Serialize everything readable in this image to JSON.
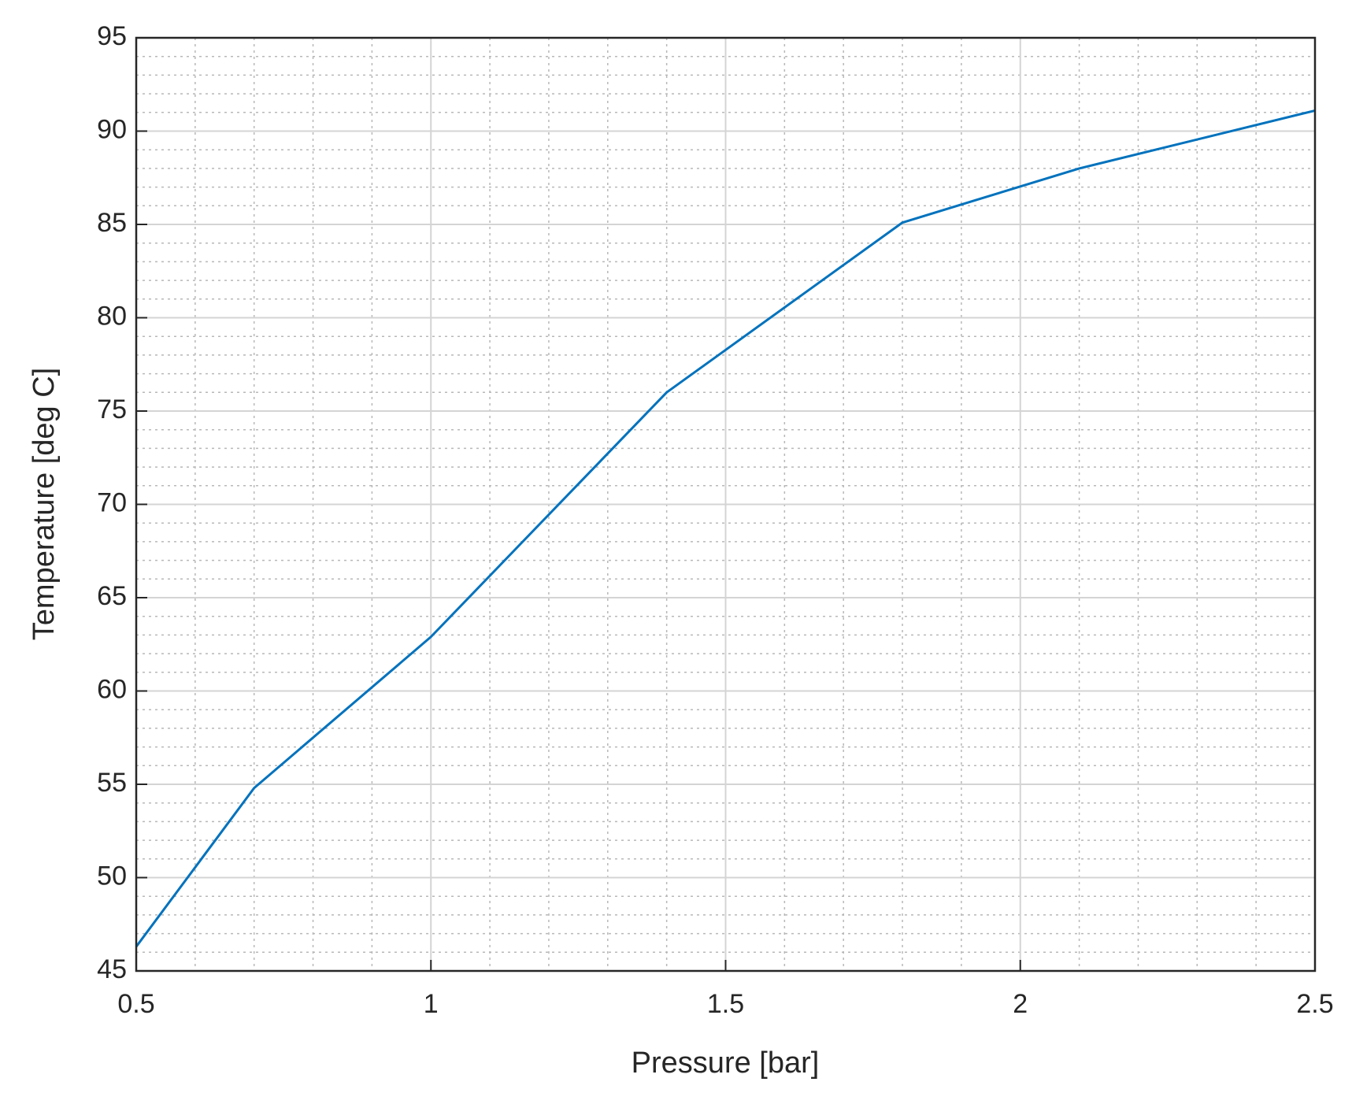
{
  "chart_data": {
    "type": "line",
    "xlabel": "Pressure [bar]",
    "ylabel": "Temperature [deg C]",
    "x": [
      0.5,
      0.7,
      1.0,
      1.4,
      1.8,
      2.1,
      2.5
    ],
    "series": [
      {
        "color": "#0072bd",
        "values": [
          46.3,
          54.8,
          62.9,
          76.0,
          85.1,
          88.0,
          91.1
        ]
      }
    ],
    "xlim": [
      0.5,
      2.5
    ],
    "xticks": [
      0.5,
      1,
      1.5,
      2,
      2.5
    ],
    "ylim": [
      45,
      95
    ],
    "yticks": [
      45,
      50,
      55,
      60,
      65,
      70,
      75,
      80,
      85,
      90,
      95
    ],
    "grid": true,
    "minor_grid": true
  }
}
